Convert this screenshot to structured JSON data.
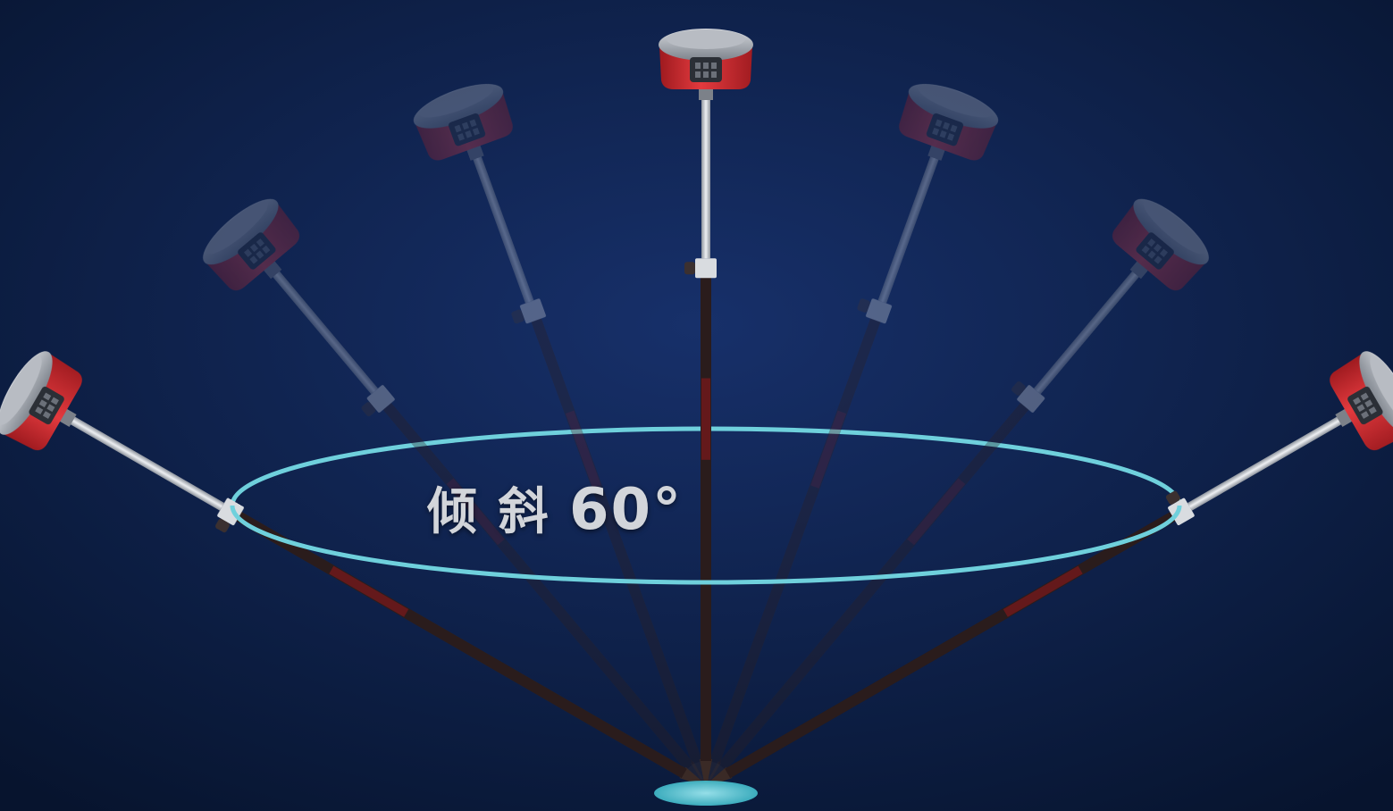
{
  "label": {
    "prefix": "倾 斜 ",
    "value": "60°"
  },
  "tilt_max_deg": 60,
  "pole_angles_deg": [
    -60,
    -40,
    -20,
    0,
    20,
    40,
    60
  ],
  "colors": {
    "background_center": "#17306a",
    "background_edge": "#07142e",
    "ring": "#6fd0dc",
    "receiver_red": "#d92b30",
    "receiver_cap": "#9ea3ab",
    "pole_dark": "#2a1c1c",
    "pole_silver": "#c8ccd2"
  }
}
